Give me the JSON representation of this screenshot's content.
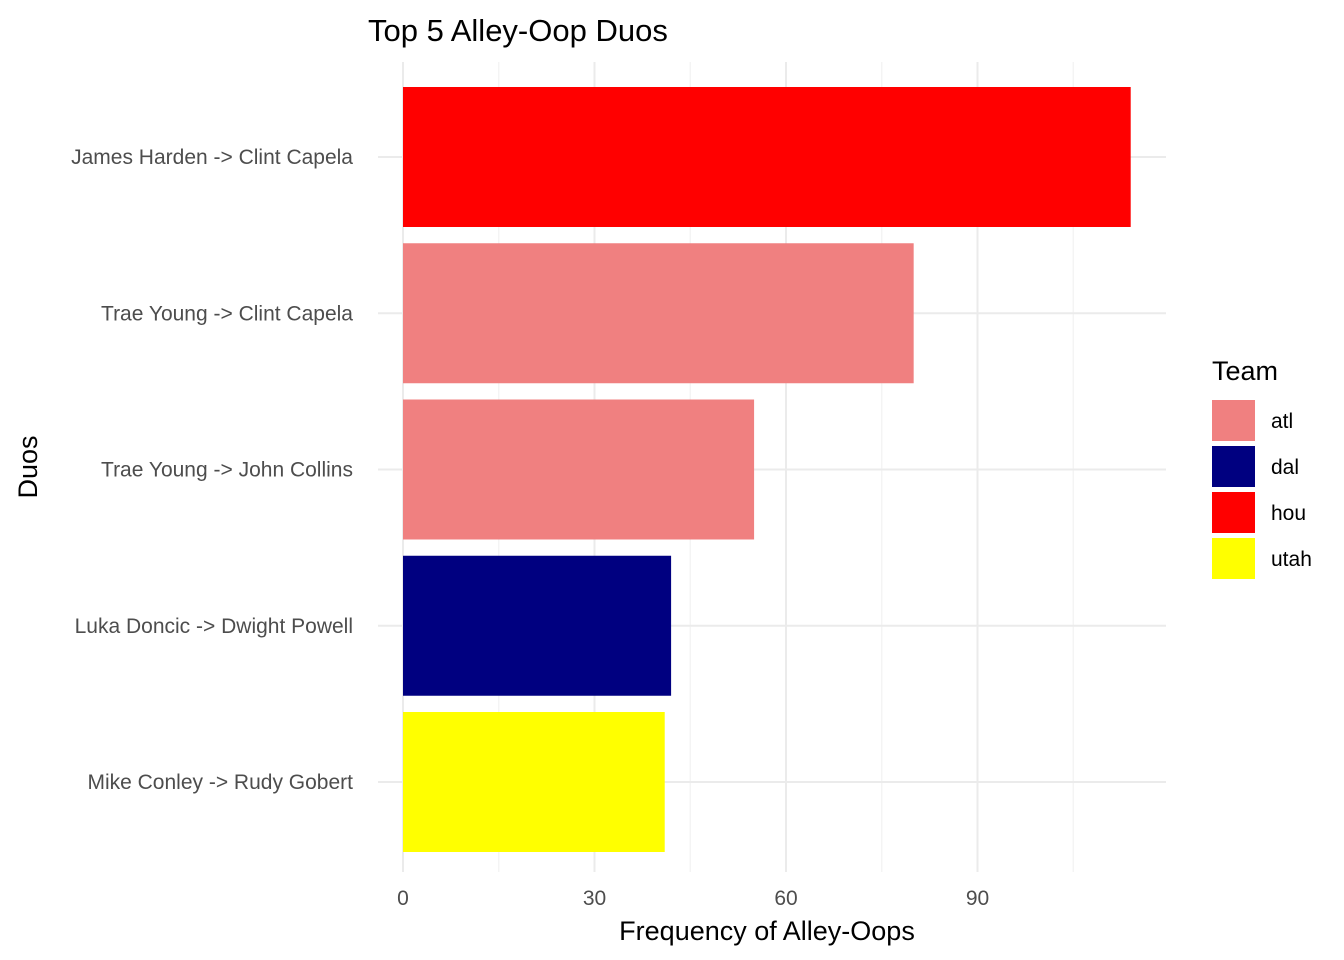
{
  "chart_data": {
    "type": "bar",
    "orientation": "horizontal",
    "title": "Top 5 Alley-Oop Duos",
    "xlabel": "Frequency of Alley-Oops",
    "ylabel": "Duos",
    "categories": [
      "James Harden -> Clint Capela",
      "Trae Young -> Clint Capela",
      "Trae Young -> John Collins",
      "Luka Doncic -> Dwight Powell",
      "Mike Conley -> Rudy Gobert"
    ],
    "values": [
      114,
      80,
      55,
      42,
      41
    ],
    "teams": [
      "hou",
      "atl",
      "atl",
      "dal",
      "utah"
    ],
    "xlim": [
      0,
      120
    ],
    "xticks": [
      0,
      30,
      60,
      90
    ],
    "grid": true,
    "legend": {
      "title": "Team",
      "position": "right",
      "entries": [
        {
          "label": "atl",
          "color": "#F08080"
        },
        {
          "label": "dal",
          "color": "#000080"
        },
        {
          "label": "hou",
          "color": "#FF0000"
        },
        {
          "label": "utah",
          "color": "#FFFF00"
        }
      ]
    }
  }
}
